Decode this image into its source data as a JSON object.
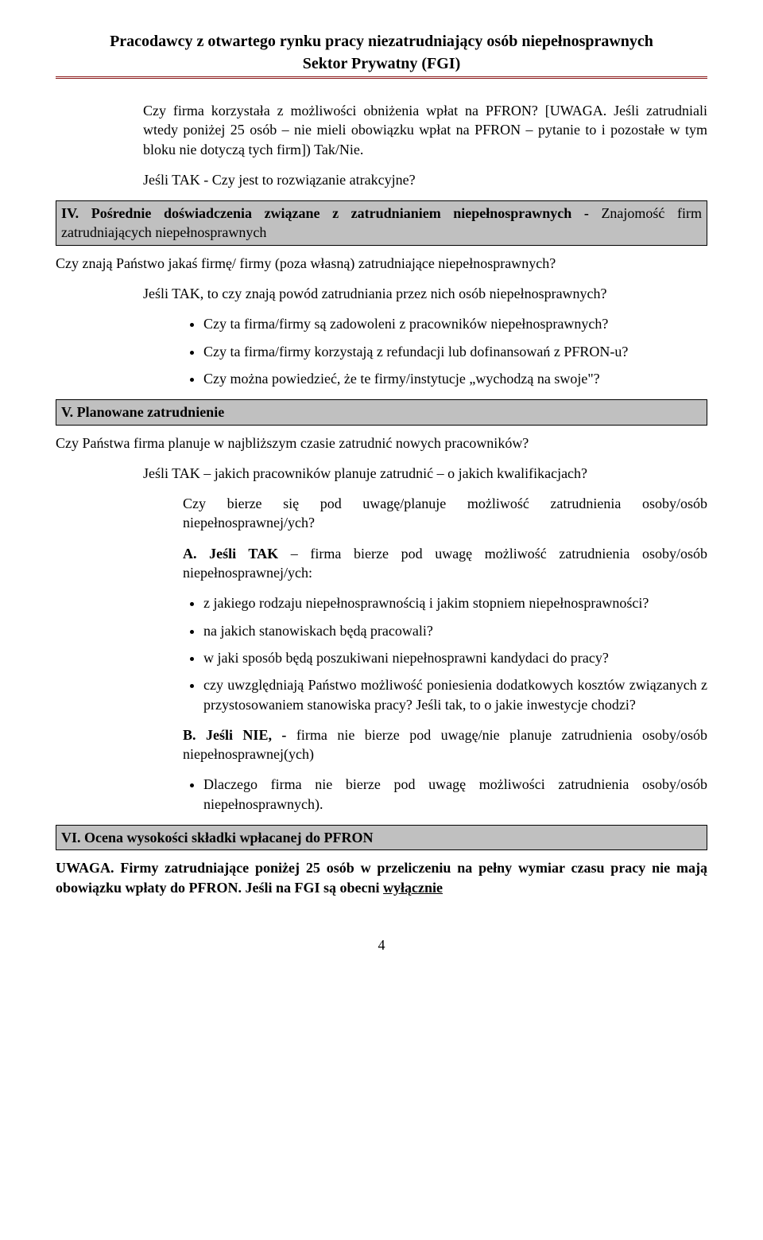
{
  "header": {
    "line1": "Pracodawcy z otwartego rynku pracy niezatrudniający osób niepełnosprawnych",
    "line2": "Sektor Prywatny (FGI)"
  },
  "intro": {
    "p1": "Czy firma korzystała z możliwości obniżenia wpłat na PFRON? [UWAGA. Jeśli zatrudniali wtedy poniżej 25 osób – nie mieli obowiązku wpłat na PFRON – pytanie to i pozostałe w tym bloku nie dotyczą tych firm]) Tak/Nie.",
    "p2": "Jeśli TAK - Czy jest to rozwiązanie atrakcyjne?"
  },
  "section4": {
    "heading_prefix": "IV. Pośrednie doświadczenia związane z zatrudnianiem niepełnosprawnych - ",
    "heading_suffix": "Znajomość firm zatrudniających niepełnosprawnych",
    "q1": "Czy znają Państwo jakaś firmę/ firmy (poza własną) zatrudniające niepełnosprawnych?",
    "q2": "Jeśli TAK, to czy znają powód zatrudniania przez nich osób niepełnosprawnych?",
    "bullets": [
      "Czy ta firma/firmy są zadowoleni z pracowników niepełnosprawnych?",
      "Czy ta firma/firmy korzystają z refundacji lub dofinansowań z PFRON-u?",
      "Czy można powiedzieć, że te firmy/instytucje „wychodzą na swoje\"?"
    ]
  },
  "section5": {
    "heading": "V. Planowane zatrudnienie",
    "q1": "Czy Państwa firma planuje w najbliższym czasie zatrudnić nowych pracowników?",
    "q2": "Jeśli TAK – jakich pracowników planuje zatrudnić – o jakich kwalifikacjach?",
    "q3": "Czy bierze się pod uwagę/planuje możliwość zatrudnienia osoby/osób niepełnosprawnej/ych?",
    "a_prefix": "A. Jeśli TAK",
    "a_suffix": " – firma bierze pod uwagę możliwość zatrudnienia osoby/osób niepełnosprawnej/ych:",
    "a_bullets": [
      "z jakiego rodzaju niepełnosprawnością i jakim stopniem niepełnosprawności?",
      "na jakich stanowiskach będą pracowali?",
      "w jaki sposób będą poszukiwani niepełnosprawni kandydaci do pracy?",
      "czy uwzględniają Państwo możliwość poniesienia dodatkowych kosztów związanych z przystosowaniem stanowiska pracy? Jeśli tak, to o jakie inwestycje chodzi?"
    ],
    "b_prefix": "B. Jeśli NIE, -",
    "b_suffix": " firma nie bierze pod uwagę/nie planuje zatrudnienia osoby/osób niepełnosprawnej(ych)",
    "b_bullets": [
      "Dlaczego firma nie bierze pod uwagę możliwości zatrudnienia osoby/osób niepełnosprawnych)."
    ]
  },
  "section6": {
    "heading": "VI. Ocena wysokości składki wpłacanej do PFRON"
  },
  "footer_note": {
    "prefix": "UWAGA. Firmy zatrudniające poniżej 25 osób w przeliczeniu na pełny wymiar czasu pracy nie mają obowiązku wpłaty do PFRON. Jeśli na FGI są obecni ",
    "underlined": "wyłącznie"
  },
  "page_number": "4"
}
